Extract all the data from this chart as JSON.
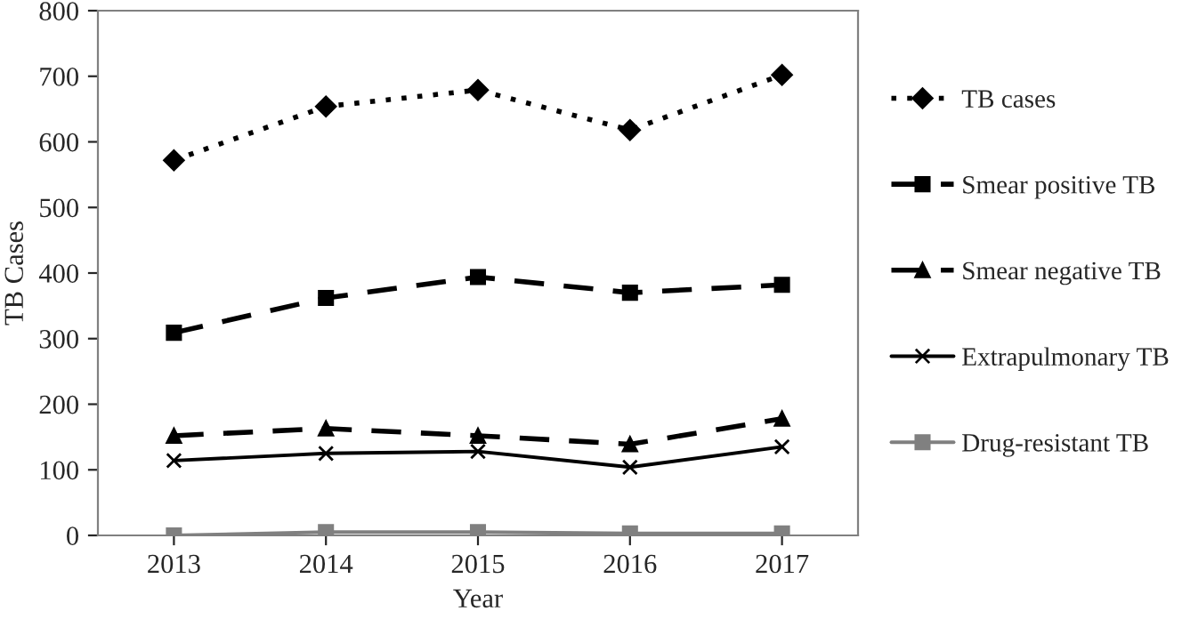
{
  "chart_data": {
    "type": "line",
    "xlabel": "Year",
    "ylabel": "TB Cases",
    "categories": [
      "2013",
      "2014",
      "2015",
      "2016",
      "2017"
    ],
    "series": [
      {
        "name": "TB cases",
        "color": "#000000",
        "marker": "diamond",
        "line_style": "dotted",
        "values": [
          572,
          654,
          679,
          618,
          702
        ]
      },
      {
        "name": "Smear positive TB",
        "color": "#000000",
        "marker": "square",
        "line_style": "dashed",
        "values": [
          309,
          362,
          394,
          370,
          382
        ]
      },
      {
        "name": "Smear negative TB",
        "color": "#000000",
        "marker": "triangle",
        "line_style": "dashed",
        "values": [
          152,
          163,
          152,
          139,
          178
        ]
      },
      {
        "name": "Extrapulmonary TB",
        "color": "#000000",
        "marker": "cross",
        "line_style": "solid",
        "values": [
          114,
          125,
          128,
          104,
          135
        ]
      },
      {
        "name": "Drug-resistant TB",
        "color": "#808080",
        "marker": "square",
        "line_style": "solid",
        "values": [
          0,
          5,
          5,
          3,
          3
        ]
      }
    ],
    "ylim": [
      0,
      800
    ],
    "yticks": [
      0,
      100,
      200,
      300,
      400,
      500,
      600,
      700,
      800
    ],
    "grid": false,
    "legend": "right"
  }
}
